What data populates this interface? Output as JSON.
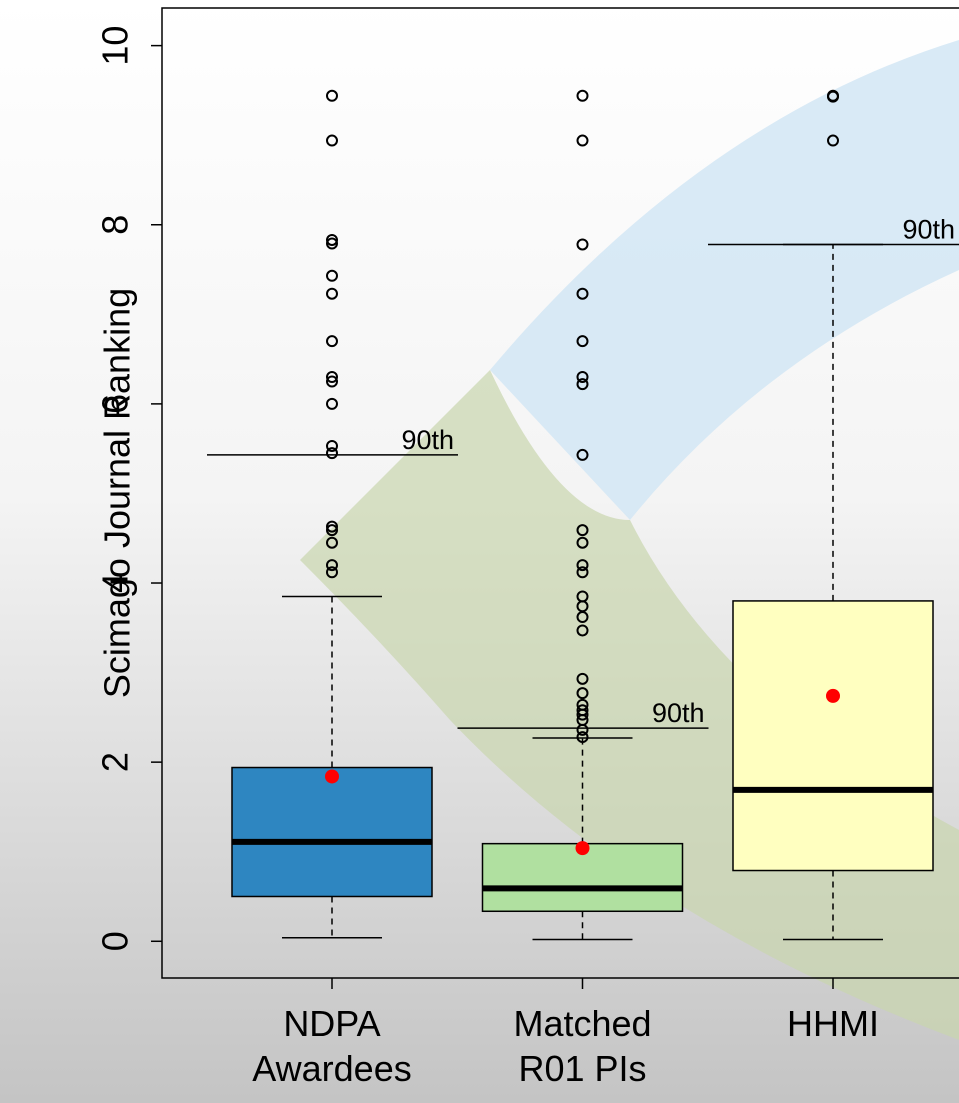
{
  "chart_data": {
    "type": "box",
    "y_label": "Scimago Journal Ranking",
    "ylim": [
      -0.41,
      10.42
    ],
    "yticks": [
      0,
      2,
      4,
      6,
      8,
      10
    ],
    "categories": [
      [
        "NDPA",
        "Awardees"
      ],
      [
        "Matched",
        "R01 PIs"
      ],
      [
        "HHMI"
      ]
    ],
    "mean_color": "#ff0000",
    "boxes": [
      {
        "color": "#2e86c1",
        "whisker_low": 0.04,
        "q1": 0.5,
        "median": 1.11,
        "q3": 1.94,
        "whisker_high": 3.85,
        "mean": 1.84,
        "p90": 5.43,
        "p90_label": "90th",
        "outliers": [
          4.12,
          4.2,
          4.45,
          4.59,
          4.63,
          5.45,
          5.53,
          6.0,
          6.25,
          6.3,
          6.7,
          7.23,
          7.43,
          7.79,
          7.83,
          8.94,
          9.44
        ]
      },
      {
        "color": "#b0e0a0",
        "whisker_low": 0.02,
        "q1": 0.335,
        "median": 0.59,
        "q3": 1.09,
        "whisker_high": 2.27,
        "mean": 1.04,
        "p90": 2.38,
        "p90_label": "90th",
        "outliers": [
          2.28,
          2.36,
          2.47,
          2.53,
          2.58,
          2.64,
          2.77,
          2.93,
          3.47,
          3.62,
          3.74,
          3.85,
          4.12,
          4.2,
          4.45,
          4.59,
          5.43,
          6.22,
          6.3,
          6.7,
          7.23,
          7.78,
          8.94,
          9.44
        ]
      },
      {
        "color": "#ffffc0",
        "whisker_low": 0.02,
        "q1": 0.79,
        "median": 1.69,
        "q3": 3.8,
        "whisker_high": 7.78,
        "mean": 2.74,
        "p90": 7.78,
        "p90_label": "90th",
        "outliers": [
          8.94,
          9.43,
          9.44
        ]
      }
    ]
  }
}
